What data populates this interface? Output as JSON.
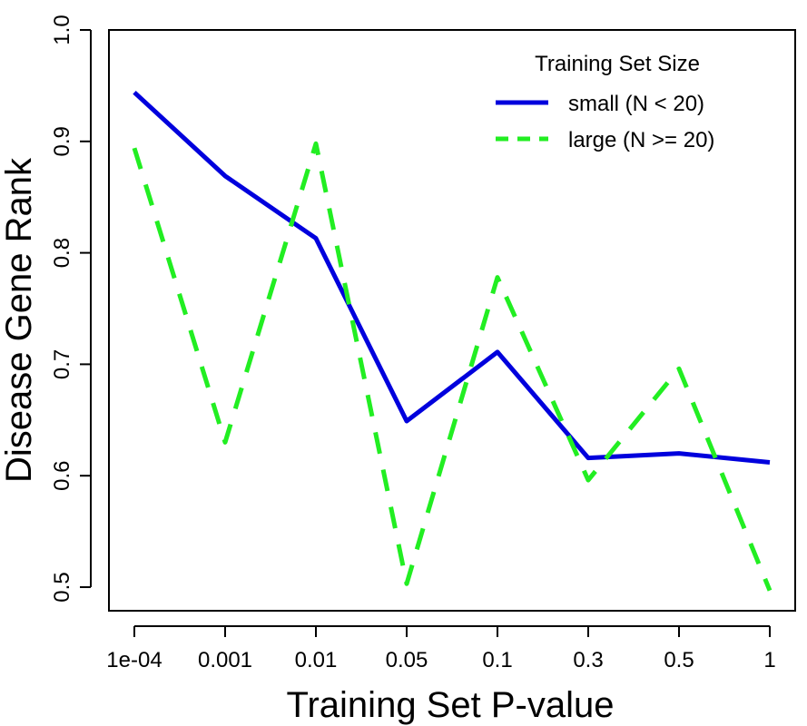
{
  "chart_data": {
    "type": "line",
    "x": [
      "1e-04",
      "0.001",
      "0.01",
      "0.05",
      "0.1",
      "0.3",
      "0.5",
      "1"
    ],
    "series": [
      {
        "name": "small (N < 20)",
        "color": "#0000dd",
        "dash": "solid",
        "values": [
          0.944,
          0.869,
          0.813,
          0.649,
          0.711,
          0.616,
          0.62,
          0.612
        ]
      },
      {
        "name": "large (N >= 20)",
        "color": "#22ee22",
        "dash": "dashed",
        "values": [
          0.894,
          0.63,
          0.898,
          0.503,
          0.778,
          0.596,
          0.696,
          0.497
        ]
      }
    ],
    "xlabel": "Training Set P-value",
    "ylabel": "Disease Gene Rank",
    "ylim": [
      0.5,
      1.0
    ],
    "yticks": [
      "0.5",
      "0.6",
      "0.7",
      "0.8",
      "0.9",
      "1.0"
    ],
    "legend_title": "Training Set Size",
    "legend_position": "top-right",
    "grid": false
  }
}
